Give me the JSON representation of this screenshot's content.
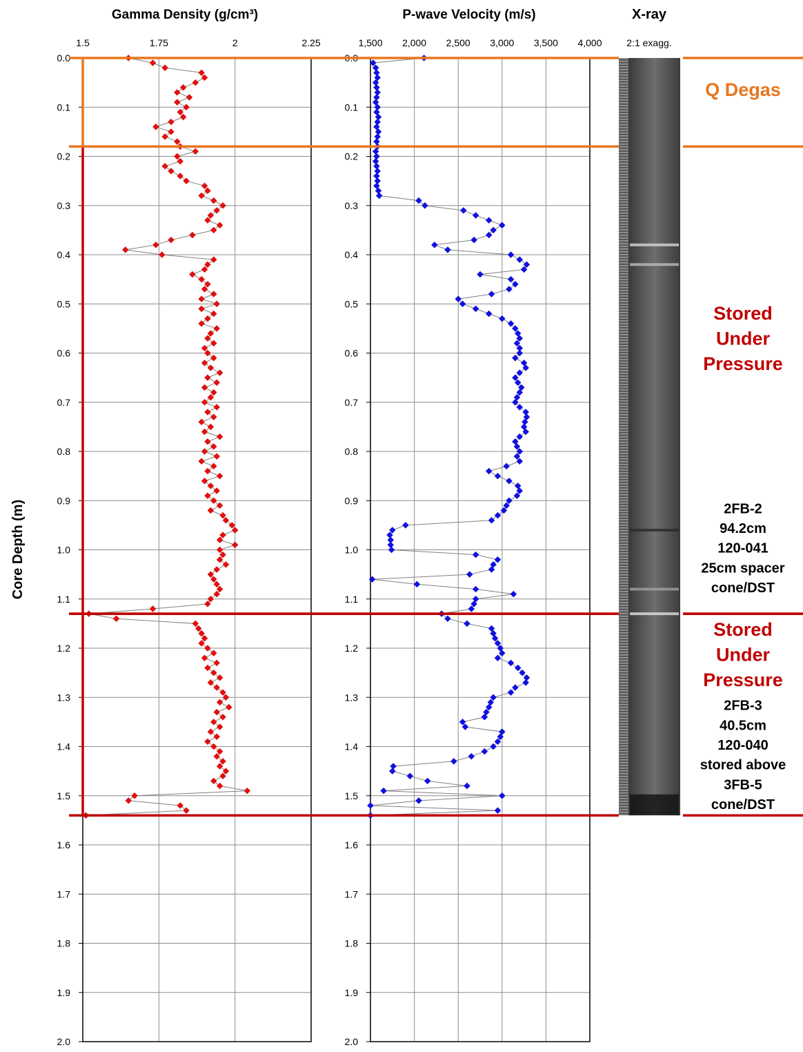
{
  "chart_data": [
    {
      "type": "depth-log",
      "title": "Gamma Density (g/cm³)",
      "ylabel": "Core Depth (m)",
      "color": "#e01010",
      "line_color": "#808080",
      "grid": true,
      "xlim": [
        1.5,
        2.25
      ],
      "xticks": [
        1.5,
        1.75,
        2,
        2.25
      ],
      "ylim": [
        0,
        2
      ],
      "yticks": [
        {
          "value": 0,
          "label": "0.0"
        },
        0.1,
        0.2,
        0.3,
        0.4,
        0.5,
        0.6,
        0.7,
        0.8,
        0.9,
        {
          "value": 1,
          "label": "1.0"
        },
        1.1,
        1.2,
        1.3,
        1.4,
        1.5,
        1.6,
        1.7,
        1.8,
        1.9,
        {
          "value": 2,
          "label": "2.0"
        }
      ],
      "depths": [
        0,
        0.01,
        0.02,
        0.03,
        0.04,
        0.05,
        0.06,
        0.07,
        0.08,
        0.09,
        0.1,
        0.11,
        0.12,
        0.13,
        0.14,
        0.15,
        0.16,
        0.17,
        0.18,
        0.19,
        0.2,
        0.21,
        0.22,
        0.23,
        0.24,
        0.25,
        0.26,
        0.27,
        0.28,
        0.29,
        0.3,
        0.31,
        0.32,
        0.33,
        0.34,
        0.35,
        0.36,
        0.37,
        0.38,
        0.39,
        0.4,
        0.41,
        0.42,
        0.43,
        0.44,
        0.45,
        0.46,
        0.47,
        0.48,
        0.49,
        0.5,
        0.51,
        0.52,
        0.53,
        0.54,
        0.55,
        0.56,
        0.57,
        0.58,
        0.59,
        0.6,
        0.61,
        0.62,
        0.63,
        0.64,
        0.65,
        0.66,
        0.67,
        0.68,
        0.69,
        0.7,
        0.71,
        0.72,
        0.73,
        0.74,
        0.75,
        0.76,
        0.77,
        0.78,
        0.79,
        0.8,
        0.81,
        0.82,
        0.83,
        0.84,
        0.85,
        0.86,
        0.87,
        0.88,
        0.89,
        0.9,
        0.91,
        0.92,
        0.93,
        0.94,
        0.95,
        0.96,
        0.97,
        0.98,
        0.99,
        1,
        1.01,
        1.02,
        1.03,
        1.04,
        1.05,
        1.06,
        1.07,
        1.08,
        1.09,
        1.1,
        1.11,
        1.12,
        1.13,
        1.14,
        1.15,
        1.16,
        1.17,
        1.18,
        1.19,
        1.2,
        1.21,
        1.22,
        1.23,
        1.24,
        1.25,
        1.26,
        1.27,
        1.28,
        1.29,
        1.3,
        1.31,
        1.32,
        1.33,
        1.34,
        1.35,
        1.36,
        1.37,
        1.38,
        1.39,
        1.4,
        1.41,
        1.42,
        1.43,
        1.44,
        1.45,
        1.46,
        1.47,
        1.48,
        1.49,
        1.5,
        1.51,
        1.52,
        1.53,
        1.54
      ],
      "values": [
        1.65,
        1.73,
        1.77,
        1.89,
        1.9,
        1.87,
        1.83,
        1.81,
        1.85,
        1.81,
        1.84,
        1.82,
        1.83,
        1.79,
        1.74,
        1.79,
        1.77,
        1.81,
        1.82,
        1.87,
        1.81,
        1.82,
        1.77,
        1.79,
        1.82,
        1.84,
        1.9,
        1.91,
        1.89,
        1.93,
        1.96,
        1.94,
        1.92,
        1.91,
        1.95,
        1.93,
        1.86,
        1.79,
        1.74,
        1.64,
        1.76,
        1.93,
        1.91,
        1.9,
        1.86,
        1.89,
        1.91,
        1.9,
        1.93,
        1.89,
        1.94,
        1.89,
        1.93,
        1.91,
        1.89,
        1.94,
        1.92,
        1.91,
        1.93,
        1.9,
        1.91,
        1.93,
        1.9,
        1.92,
        1.95,
        1.91,
        1.94,
        1.9,
        1.93,
        1.92,
        1.9,
        1.94,
        1.91,
        1.93,
        1.89,
        1.92,
        1.9,
        1.95,
        1.91,
        1.93,
        1.9,
        1.94,
        1.89,
        1.93,
        1.91,
        1.95,
        1.9,
        1.92,
        1.94,
        1.91,
        1.93,
        1.95,
        1.92,
        1.96,
        1.97,
        1.99,
        2.0,
        1.96,
        1.95,
        2.0,
        1.95,
        1.96,
        1.95,
        1.97,
        1.94,
        1.92,
        1.93,
        1.94,
        1.95,
        1.94,
        1.92,
        1.91,
        1.73,
        1.52,
        1.61,
        1.87,
        1.88,
        1.89,
        1.9,
        1.89,
        1.91,
        1.93,
        1.9,
        1.94,
        1.91,
        1.93,
        1.95,
        1.92,
        1.94,
        1.96,
        1.97,
        1.95,
        1.98,
        1.94,
        1.96,
        1.93,
        1.95,
        1.92,
        1.94,
        1.91,
        1.93,
        1.95,
        1.94,
        1.96,
        1.95,
        1.97,
        1.96,
        1.93,
        1.95,
        2.04,
        1.67,
        1.65,
        1.82,
        1.84,
        1.51
      ]
    },
    {
      "type": "depth-log",
      "title": "P-wave Velocity (m/s)",
      "color": "#1010e0",
      "line_color": "#808080",
      "grid": true,
      "xlim": [
        1500,
        4000
      ],
      "xticks": [
        {
          "value": 1500,
          "label": "1,500"
        },
        {
          "value": 2000,
          "label": "2,000"
        },
        {
          "value": 2500,
          "label": "2,500"
        },
        {
          "value": 3000,
          "label": "3,000"
        },
        {
          "value": 3500,
          "label": "3,500"
        },
        {
          "value": 4000,
          "label": "4,000"
        }
      ],
      "ylim": [
        0,
        2
      ],
      "yticks": [
        {
          "value": 0,
          "label": "0.0"
        },
        0.1,
        0.2,
        0.3,
        0.4,
        0.5,
        0.6,
        0.7,
        0.8,
        0.9,
        {
          "value": 1,
          "label": "1.0"
        },
        1.1,
        1.2,
        1.3,
        1.4,
        1.5,
        1.6,
        1.7,
        1.8,
        1.9,
        {
          "value": 2,
          "label": "2.0"
        }
      ],
      "depths": [
        0,
        0.01,
        0.02,
        0.03,
        0.04,
        0.05,
        0.06,
        0.07,
        0.08,
        0.09,
        0.1,
        0.11,
        0.12,
        0.13,
        0.14,
        0.15,
        0.16,
        0.17,
        0.18,
        0.19,
        0.2,
        0.21,
        0.22,
        0.23,
        0.24,
        0.25,
        0.26,
        0.27,
        0.28,
        0.29,
        0.3,
        0.31,
        0.32,
        0.33,
        0.34,
        0.35,
        0.36,
        0.37,
        0.38,
        0.39,
        0.4,
        0.41,
        0.42,
        0.43,
        0.44,
        0.45,
        0.46,
        0.47,
        0.48,
        0.49,
        0.5,
        0.51,
        0.52,
        0.53,
        0.54,
        0.55,
        0.56,
        0.57,
        0.58,
        0.59,
        0.6,
        0.61,
        0.62,
        0.63,
        0.64,
        0.65,
        0.66,
        0.67,
        0.68,
        0.69,
        0.7,
        0.71,
        0.72,
        0.73,
        0.74,
        0.75,
        0.76,
        0.77,
        0.78,
        0.79,
        0.8,
        0.81,
        0.82,
        0.83,
        0.84,
        0.85,
        0.86,
        0.87,
        0.88,
        0.89,
        0.9,
        0.91,
        0.92,
        0.93,
        0.94,
        0.95,
        0.96,
        0.97,
        0.98,
        0.99,
        1,
        1.01,
        1.02,
        1.03,
        1.04,
        1.05,
        1.06,
        1.07,
        1.08,
        1.09,
        1.1,
        1.11,
        1.12,
        1.13,
        1.14,
        1.15,
        1.16,
        1.17,
        1.18,
        1.19,
        1.2,
        1.21,
        1.22,
        1.23,
        1.24,
        1.25,
        1.26,
        1.27,
        1.28,
        1.29,
        1.3,
        1.31,
        1.32,
        1.33,
        1.34,
        1.35,
        1.36,
        1.37,
        1.38,
        1.39,
        1.4,
        1.41,
        1.42,
        1.43,
        1.44,
        1.45,
        1.46,
        1.47,
        1.48,
        1.49,
        1.5,
        1.51,
        1.52,
        1.53,
        1.54
      ],
      "values": [
        2110,
        1530,
        1560,
        1570,
        1580,
        1560,
        1570,
        1580,
        1570,
        1560,
        1580,
        1570,
        1590,
        1580,
        1570,
        1590,
        1580,
        1570,
        1580,
        1560,
        1570,
        1560,
        1570,
        1580,
        1570,
        1580,
        1570,
        1590,
        1600,
        2050,
        2120,
        2560,
        2700,
        2850,
        3000,
        2900,
        2850,
        2680,
        2230,
        2380,
        3100,
        3200,
        3280,
        3250,
        2750,
        3100,
        3150,
        3080,
        2880,
        2500,
        2550,
        2700,
        2850,
        3000,
        3100,
        3150,
        3180,
        3200,
        3170,
        3200,
        3200,
        3150,
        3250,
        3270,
        3200,
        3150,
        3180,
        3220,
        3200,
        3170,
        3150,
        3200,
        3270,
        3280,
        3260,
        3250,
        3270,
        3200,
        3150,
        3170,
        3200,
        3170,
        3200,
        3050,
        2850,
        2950,
        3080,
        3180,
        3200,
        3170,
        3080,
        3050,
        3020,
        2950,
        2880,
        1900,
        1750,
        1720,
        1730,
        1730,
        1740,
        2700,
        2950,
        2900,
        2880,
        2630,
        1520,
        2030,
        2700,
        3130,
        2700,
        2680,
        2650,
        2310,
        2380,
        2600,
        2880,
        2900,
        2920,
        2950,
        2980,
        3000,
        2950,
        3100,
        3180,
        3230,
        3280,
        3270,
        3150,
        3100,
        2900,
        2870,
        2850,
        2820,
        2800,
        2550,
        2580,
        3000,
        2980,
        2950,
        2900,
        2800,
        2650,
        2450,
        1760,
        1750,
        1950,
        2150,
        2600,
        1650,
        3000,
        2050,
        1500,
        2950,
        1500
      ]
    }
  ],
  "xray": {
    "title": "X-ray",
    "subtitle": "2:1 exagg.",
    "top": 0,
    "bottom": 1.54
  },
  "zones": [
    {
      "top": 0,
      "bottom": 0.18,
      "color": "#e8761e",
      "title_lines": [
        "Q Degas"
      ]
    },
    {
      "top": 0.18,
      "bottom": 1.13,
      "color": "#c00000",
      "title_lines": [
        "Stored",
        "Under",
        "Pressure"
      ],
      "note_lines": [
        "2FB-2",
        "94.2cm",
        "120-041",
        "25cm spacer",
        "cone/DST"
      ]
    },
    {
      "top": 1.13,
      "bottom": 1.54,
      "color": "#c00000",
      "title_lines": [
        "Stored",
        "Under",
        "Pressure"
      ],
      "note_lines": [
        "2FB-3",
        "40.5cm",
        "120-040",
        "stored above",
        "3FB-5",
        "cone/DST"
      ]
    }
  ]
}
